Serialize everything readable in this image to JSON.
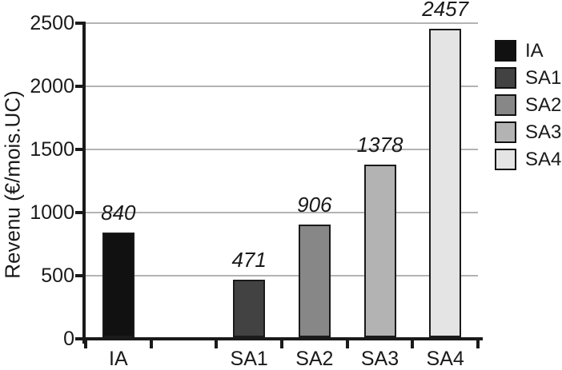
{
  "chart_data": {
    "type": "bar",
    "title": "",
    "xlabel": "",
    "ylabel": "Revenu (€/mois.UC)",
    "categories": [
      "IA",
      "SA1",
      "SA2",
      "SA3",
      "SA4"
    ],
    "values": [
      840,
      471,
      906,
      1378,
      2457
    ],
    "data_labels": [
      "840",
      "471",
      "906",
      "1378",
      "2457"
    ],
    "bar_colors": [
      "#111111",
      "#424242",
      "#878787",
      "#b3b3b3",
      "#e4e4e4"
    ],
    "slot_indices": [
      0,
      2,
      3,
      4,
      5
    ],
    "num_slots": 6,
    "ylim": [
      0,
      2500
    ],
    "yticks": [
      0,
      500,
      1000,
      1500,
      2000,
      2500
    ],
    "ytick_labels": [
      "0",
      "500",
      "1000",
      "1500",
      "2000",
      "2500"
    ],
    "grid": true,
    "gridline_color": "#b3b3b3",
    "axis_color": "#1a1a1a",
    "text_color": "#1a1a1a",
    "legend": {
      "position": "right",
      "entries": [
        "IA",
        "SA1",
        "SA2",
        "SA3",
        "SA4"
      ],
      "colors": [
        "#111111",
        "#424242",
        "#878787",
        "#b3b3b3",
        "#e4e4e4"
      ]
    }
  }
}
